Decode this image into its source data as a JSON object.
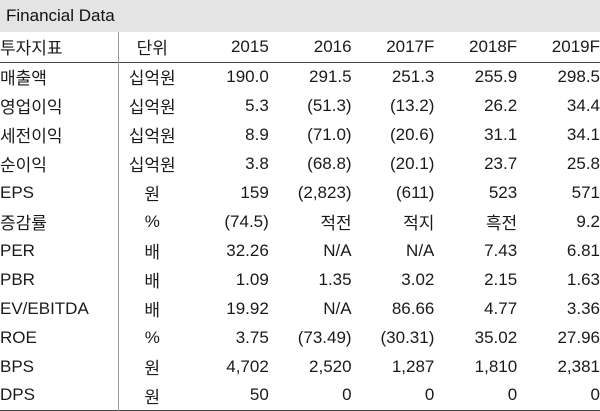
{
  "title": "Financial Data",
  "header": {
    "label": "투자지표",
    "unit": "단위",
    "years": [
      "2015",
      "2016",
      "2017F",
      "2018F",
      "2019F"
    ]
  },
  "rows": [
    {
      "label": "매출액",
      "unit": "십억원",
      "values": [
        "190.0",
        "291.5",
        "251.3",
        "255.9",
        "298.5"
      ]
    },
    {
      "label": "영업이익",
      "unit": "십억원",
      "values": [
        "5.3",
        "(51.3)",
        "(13.2)",
        "26.2",
        "34.4"
      ]
    },
    {
      "label": "세전이익",
      "unit": "십억원",
      "values": [
        "8.9",
        "(71.0)",
        "(20.6)",
        "31.1",
        "34.1"
      ]
    },
    {
      "label": "순이익",
      "unit": "십억원",
      "values": [
        "3.8",
        "(68.8)",
        "(20.1)",
        "23.7",
        "25.8"
      ]
    },
    {
      "label": "EPS",
      "unit": "원",
      "values": [
        "159",
        "(2,823)",
        "(611)",
        "523",
        "571"
      ]
    },
    {
      "label": "증감률",
      "unit": "%",
      "values": [
        "(74.5)",
        "적전",
        "적지",
        "흑전",
        "9.2"
      ]
    },
    {
      "label": "PER",
      "unit": "배",
      "values": [
        "32.26",
        "N/A",
        "N/A",
        "7.43",
        "6.81"
      ]
    },
    {
      "label": "PBR",
      "unit": "배",
      "values": [
        "1.09",
        "1.35",
        "3.02",
        "2.15",
        "1.63"
      ]
    },
    {
      "label": "EV/EBITDA",
      "unit": "배",
      "values": [
        "19.92",
        "N/A",
        "86.66",
        "4.77",
        "3.36"
      ]
    },
    {
      "label": "ROE",
      "unit": "%",
      "values": [
        "3.75",
        "(73.49)",
        "(30.31)",
        "35.02",
        "27.96"
      ]
    },
    {
      "label": "BPS",
      "unit": "원",
      "values": [
        "4,702",
        "2,520",
        "1,287",
        "1,810",
        "2,381"
      ]
    },
    {
      "label": "DPS",
      "unit": "원",
      "values": [
        "50",
        "0",
        "0",
        "0",
        "0"
      ]
    }
  ]
}
